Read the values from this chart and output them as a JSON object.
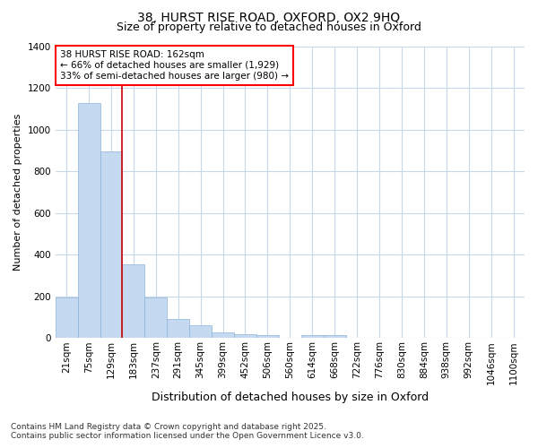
{
  "title_line1": "38, HURST RISE ROAD, OXFORD, OX2 9HQ",
  "title_line2": "Size of property relative to detached houses in Oxford",
  "xlabel": "Distribution of detached houses by size in Oxford",
  "ylabel": "Number of detached properties",
  "footer_line1": "Contains HM Land Registry data © Crown copyright and database right 2025.",
  "footer_line2": "Contains public sector information licensed under the Open Government Licence v3.0.",
  "annotation_line1": "38 HURST RISE ROAD: 162sqm",
  "annotation_line2": "← 66% of detached houses are smaller (1,929)",
  "annotation_line3": "33% of semi-detached houses are larger (980) →",
  "vline_pos": 2.5,
  "categories": [
    "21sqm",
    "75sqm",
    "129sqm",
    "183sqm",
    "237sqm",
    "291sqm",
    "345sqm",
    "399sqm",
    "452sqm",
    "506sqm",
    "560sqm",
    "614sqm",
    "668sqm",
    "722sqm",
    "776sqm",
    "830sqm",
    "884sqm",
    "938sqm",
    "992sqm",
    "1046sqm",
    "1100sqm"
  ],
  "values": [
    193,
    1127,
    893,
    352,
    196,
    93,
    60,
    25,
    20,
    13,
    0,
    14,
    14,
    0,
    0,
    0,
    0,
    0,
    0,
    0,
    0
  ],
  "bar_color": "#c5d9f0",
  "bar_edge_color": "#8ab4d8",
  "vline_color": "#cc0000",
  "background_color": "#ffffff",
  "grid_color": "#c8d8ea",
  "ylim": [
    0,
    1400
  ],
  "yticks": [
    0,
    200,
    400,
    600,
    800,
    1000,
    1200,
    1400
  ],
  "title_fontsize": 10,
  "subtitle_fontsize": 9,
  "ylabel_fontsize": 8,
  "xlabel_fontsize": 9,
  "tick_fontsize": 7.5,
  "footer_fontsize": 6.5,
  "ann_fontsize": 7.5
}
